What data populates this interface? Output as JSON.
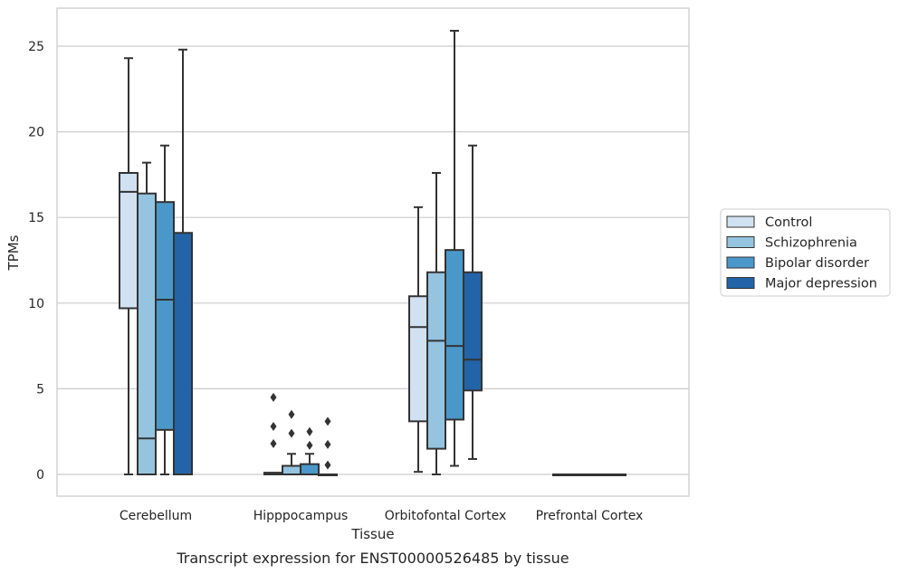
{
  "chart_data": {
    "type": "boxplot",
    "xlabel": "Tissue",
    "ylabel": "TPMs",
    "caption": "Transcript expression for ENST00000526485 by tissue",
    "ylim": [
      -1.25,
      27.0
    ],
    "yticks": [
      0,
      5,
      10,
      15,
      20,
      25
    ],
    "grid": "horizontal",
    "legend_placement": "right",
    "categories": [
      "Cerebellum",
      "Hipppocampus",
      "Orbitofontal Cortex",
      "Prefrontal Cortex"
    ],
    "series": [
      {
        "name": "Control",
        "color": "#d0e1f2",
        "boxes": [
          {
            "whislo": 0,
            "q1": 9.7,
            "med": 16.5,
            "q3": 17.6,
            "whishi": 24.3,
            "fliers": []
          },
          {
            "whislo": 0,
            "q1": 0,
            "med": 0.05,
            "q3": 0.1,
            "whishi": 0.1,
            "fliers": [
              1.8,
              2.8,
              4.5
            ]
          },
          {
            "whislo": 0.15,
            "q1": 3.1,
            "med": 8.6,
            "q3": 10.4,
            "whishi": 15.6,
            "fliers": []
          },
          {
            "whislo": 0,
            "q1": 0,
            "med": 0,
            "q3": 0,
            "whishi": 0,
            "fliers": []
          }
        ]
      },
      {
        "name": "Schizophrenia",
        "color": "#94c4df",
        "boxes": [
          {
            "whislo": 0,
            "q1": 0,
            "med": 2.1,
            "q3": 16.4,
            "whishi": 18.2,
            "fliers": []
          },
          {
            "whislo": 0,
            "q1": 0,
            "med": 0,
            "q3": 0.5,
            "whishi": 1.2,
            "fliers": [
              2.4,
              3.5
            ]
          },
          {
            "whislo": 0,
            "q1": 1.5,
            "med": 7.8,
            "q3": 11.8,
            "whishi": 17.6,
            "fliers": []
          },
          {
            "whislo": 0,
            "q1": 0,
            "med": 0,
            "q3": 0,
            "whishi": 0,
            "fliers": []
          }
        ]
      },
      {
        "name": "Bipolar disorder",
        "color": "#4a98c9",
        "boxes": [
          {
            "whislo": 0,
            "q1": 2.6,
            "med": 10.2,
            "q3": 15.9,
            "whishi": 19.2,
            "fliers": []
          },
          {
            "whislo": 0,
            "q1": 0,
            "med": 0,
            "q3": 0.6,
            "whishi": 1.2,
            "fliers": [
              1.7,
              2.5
            ]
          },
          {
            "whislo": 0.5,
            "q1": 3.2,
            "med": 7.5,
            "q3": 13.1,
            "whishi": 25.9,
            "fliers": []
          },
          {
            "whislo": 0,
            "q1": 0,
            "med": 0,
            "q3": 0,
            "whishi": 0,
            "fliers": []
          }
        ]
      },
      {
        "name": "Major depression",
        "color": "#2264a7",
        "boxes": [
          {
            "whislo": 0,
            "q1": 0,
            "med": 0,
            "q3": 14.1,
            "whishi": 24.8,
            "fliers": []
          },
          {
            "whislo": 0,
            "q1": 0,
            "med": 0,
            "q3": 0,
            "whishi": 0,
            "fliers": [
              0.55,
              1.75,
              3.1
            ]
          },
          {
            "whislo": 0.9,
            "q1": 4.9,
            "med": 6.7,
            "q3": 11.8,
            "whishi": 19.2,
            "fliers": []
          },
          {
            "whislo": 0,
            "q1": 0,
            "med": 0,
            "q3": 0,
            "whishi": 0,
            "fliers": []
          }
        ]
      }
    ]
  },
  "colors": {
    "line": "#333333",
    "grid": "#cccccc",
    "frame": "#cccccc"
  }
}
